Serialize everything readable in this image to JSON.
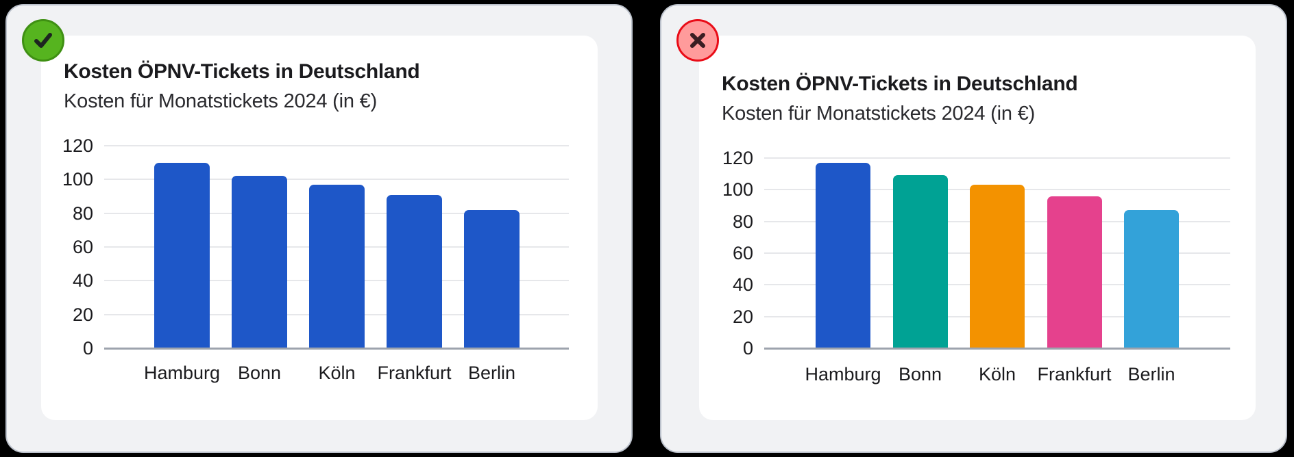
{
  "colors": {
    "page_background": "#000000",
    "panel_background": "#F1F2F4",
    "panel_border": "#BBC1CB",
    "card_background": "#FFFFFF",
    "grid_line": "#E6E7EA",
    "axis_line": "#9DA3AD",
    "text": "#1B1B1E",
    "check_badge_fill": "#56B41F",
    "check_badge_ring": "#3F9013",
    "check_glyph": "#1D2420",
    "x_badge_fill": "#FF9B9B",
    "x_badge_ring": "#E90C17",
    "x_glyph": "#3A1E22",
    "bar_blue": "#1E57C8",
    "bar_teal": "#00A294",
    "bar_orange": "#F39200",
    "bar_pink": "#E5418D",
    "bar_lightblue": "#33A2D9"
  },
  "panels": {
    "good": {
      "marker_icon": "check-icon"
    },
    "bad": {
      "marker_icon": "x-icon"
    }
  },
  "chart_data": [
    {
      "type": "bar",
      "role": "good-example",
      "marker_icon": "check-icon",
      "title": "Kosten ÖPNV-Tickets in Deutschland",
      "subtitle": "Kosten für Monatstickets 2024 (in €)",
      "categories": [
        "Hamburg",
        "Bonn",
        "Köln",
        "Frankfurt",
        "Berlin"
      ],
      "values": [
        110,
        102,
        97,
        91,
        82
      ],
      "bar_colors": [
        "#1E57C8",
        "#1E57C8",
        "#1E57C8",
        "#1E57C8",
        "#1E57C8"
      ],
      "ylim": [
        0,
        120
      ],
      "yticks": [
        0,
        20,
        40,
        60,
        80,
        100,
        120
      ],
      "xlabel": "",
      "ylabel": "",
      "grid": true,
      "legend": false
    },
    {
      "type": "bar",
      "role": "bad-example",
      "marker_icon": "x-icon",
      "title": "Kosten ÖPNV-Tickets in Deutschland",
      "subtitle": "Kosten für Monatstickets 2024 (in €)",
      "categories": [
        "Hamburg",
        "Bonn",
        "Köln",
        "Frankfurt",
        "Berlin"
      ],
      "values": [
        117,
        109,
        103,
        96,
        87
      ],
      "bar_colors": [
        "#1E57C8",
        "#00A294",
        "#F39200",
        "#E5418D",
        "#33A2D9"
      ],
      "ylim": [
        0,
        120
      ],
      "yticks": [
        0,
        20,
        40,
        60,
        80,
        100,
        120
      ],
      "xlabel": "",
      "ylabel": "",
      "grid": true,
      "legend": false
    }
  ]
}
